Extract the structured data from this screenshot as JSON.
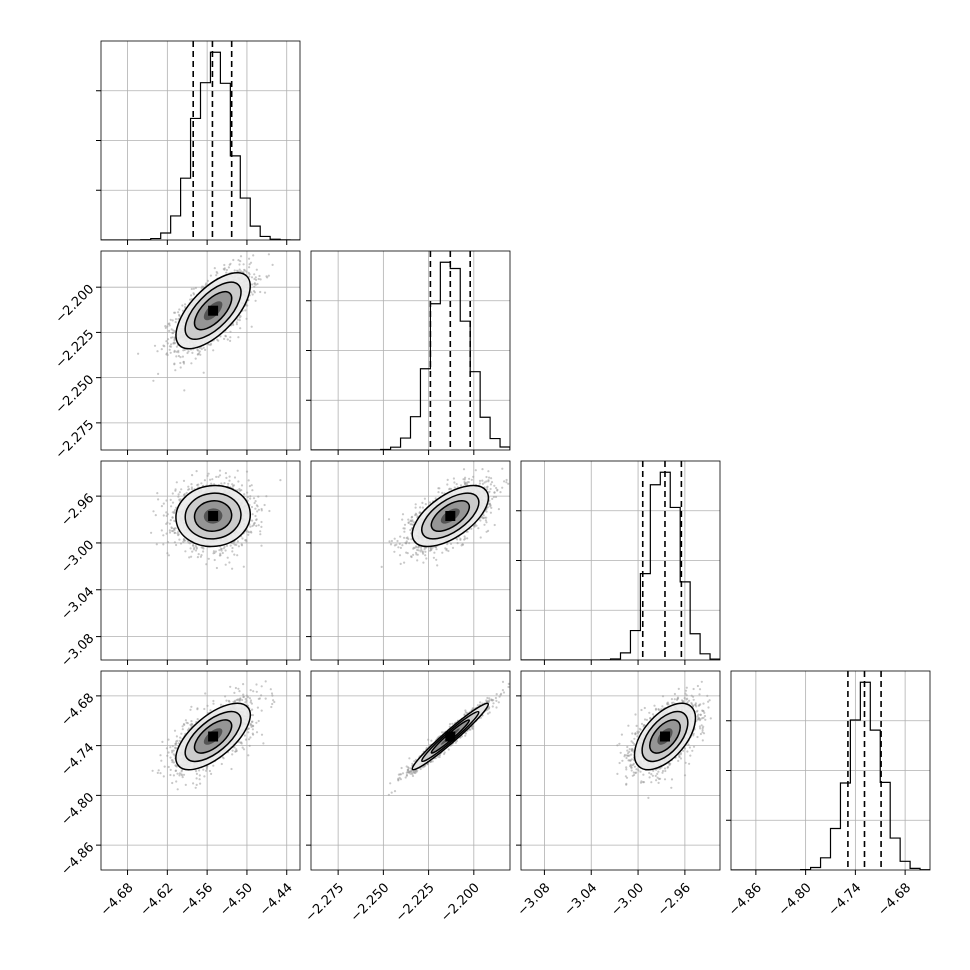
{
  "chart_data": {
    "type": "corner",
    "parameters": [
      {
        "xlim": [
          -4.72,
          -4.42
        ],
        "xticks": [
          -4.68,
          -4.62,
          -4.56,
          -4.5,
          -4.44
        ],
        "xtick_labels": [
          "−4.68",
          "−4.62",
          "−4.56",
          "−4.50",
          "−4.44"
        ],
        "center": -4.551,
        "sigma": 0.028,
        "quantiles": [
          -4.581,
          -4.552,
          -4.523
        ]
      },
      {
        "xlim": [
          -2.29,
          -2.18
        ],
        "xticks": [
          -2.275,
          -2.25,
          -2.225,
          -2.2
        ],
        "xtick_labels": [
          "−2.275",
          "−2.250",
          "−2.225",
          "−2.200"
        ],
        "center": -2.213,
        "sigma": 0.0105,
        "quantiles": [
          -2.224,
          -2.213,
          -2.202
        ]
      },
      {
        "xlim": [
          -3.1,
          -2.93
        ],
        "xticks": [
          -3.08,
          -3.04,
          -3.0,
          -2.96
        ],
        "xtick_labels": [
          "−3.08",
          "−3.04",
          "−3.00",
          "−2.96"
        ],
        "center": -2.977,
        "sigma": 0.013,
        "quantiles": [
          -2.996,
          -2.977,
          -2.963
        ]
      },
      {
        "xlim": [
          -4.89,
          -4.65
        ],
        "xticks": [
          -4.86,
          -4.8,
          -4.74,
          -4.68
        ],
        "xtick_labels": [
          "−4.86",
          "−4.80",
          "−4.74",
          "−4.68"
        ],
        "center": -4.729,
        "sigma": 0.02,
        "quantiles": [
          -4.749,
          -4.729,
          -4.709
        ]
      }
    ],
    "yticks": {
      "1": {
        "values": [
          -2.2,
          -2.225,
          -2.25,
          -2.275
        ],
        "labels": [
          "−2.200",
          "−2.225",
          "−2.250",
          "−2.275"
        ]
      },
      "2": {
        "values": [
          -2.96,
          -3.0,
          -3.04,
          -3.08
        ],
        "labels": [
          "−2.96",
          "−3.00",
          "−3.04",
          "−3.08"
        ]
      },
      "3": {
        "values": [
          -4.68,
          -4.74,
          -4.8,
          -4.86
        ],
        "labels": [
          "−4.68",
          "−4.74",
          "−4.80",
          "−4.86"
        ]
      }
    },
    "correlations": [
      [
        1.0,
        0.65,
        0.05,
        0.65
      ],
      [
        0.65,
        1.0,
        0.6,
        0.97
      ],
      [
        0.05,
        0.6,
        1.0,
        0.55
      ],
      [
        0.65,
        0.97,
        0.55,
        1.0
      ]
    ],
    "contour_levels_sigma": [
      0.5,
      1.0,
      1.5,
      2.0
    ],
    "quantile_line_style": "dashed",
    "grid": true,
    "colors": {
      "hist": "#000000",
      "points": "#9a9a9a",
      "grid": "#b0b0b0"
    }
  }
}
